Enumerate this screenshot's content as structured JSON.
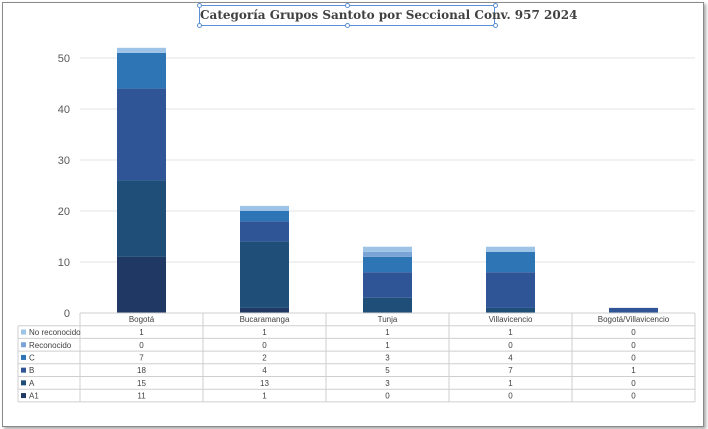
{
  "chart_data": {
    "type": "bar",
    "stacked": true,
    "title": "Categoría Grupos Santoto por Seccional Conv. 957 2024",
    "categories": [
      "Bogotá",
      "Bucaramanga",
      "Tunja",
      "Villavicencio",
      "Bogotá/Villavicencio"
    ],
    "yticks": [
      0,
      10,
      20,
      30,
      40,
      50
    ],
    "ylim": [
      0,
      54
    ],
    "series": [
      {
        "name": "A1",
        "color": "#203864",
        "values": [
          11,
          1,
          0,
          0,
          0
        ]
      },
      {
        "name": "A",
        "color": "#1f4e79",
        "values": [
          15,
          13,
          3,
          1,
          0
        ]
      },
      {
        "name": "B",
        "color": "#2f5597",
        "values": [
          18,
          4,
          5,
          7,
          1
        ]
      },
      {
        "name": "C",
        "color": "#2e75b6",
        "values": [
          7,
          2,
          3,
          4,
          0
        ]
      },
      {
        "name": "Reconocido",
        "color": "#7aa3d6",
        "values": [
          0,
          0,
          1,
          0,
          0
        ]
      },
      {
        "name": "No reconocido",
        "color": "#9dc3e6",
        "values": [
          1,
          1,
          1,
          1,
          0
        ]
      }
    ],
    "table_row_order": [
      "No reconocido",
      "Reconocido",
      "C",
      "B",
      "A",
      "A1"
    ],
    "legend": "data-table"
  }
}
